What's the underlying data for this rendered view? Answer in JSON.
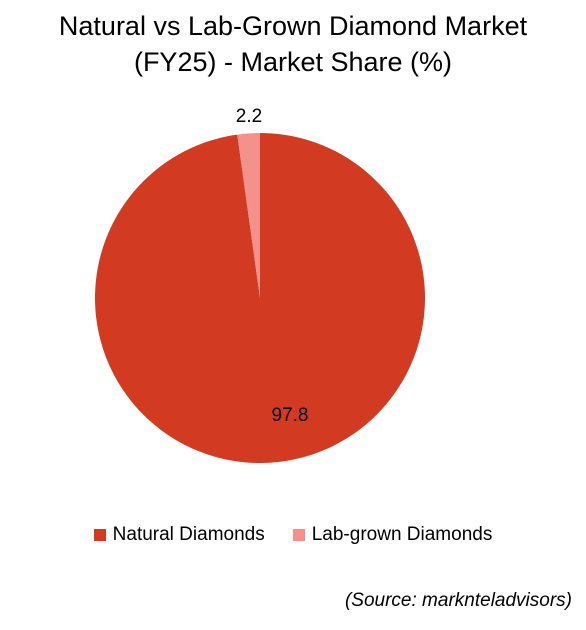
{
  "chart_data": {
    "type": "pie",
    "title_lines": [
      "Natural vs Lab-Grown Diamond Market",
      "(FY25) - Market Share (%)"
    ],
    "categories": [
      "Natural Diamonds",
      "Lab-grown Diamonds"
    ],
    "values": [
      97.8,
      2.2
    ],
    "data_labels": [
      "97.8",
      "2.2"
    ],
    "colors": [
      "#d33a22",
      "#f4918a"
    ],
    "legend_position": "bottom"
  },
  "source": "(Source: marknteladvisors)"
}
